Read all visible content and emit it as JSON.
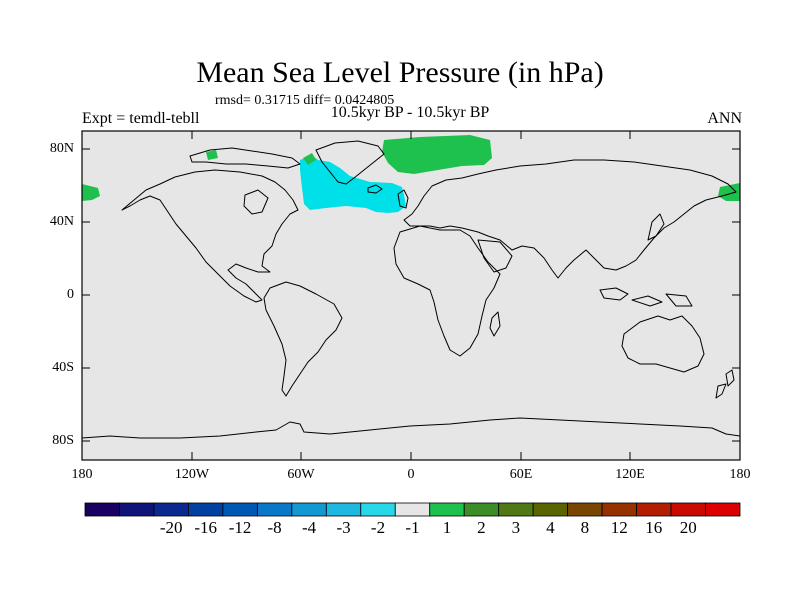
{
  "title": "Mean Sea Level Pressure (in hPa)",
  "stats": "rmsd= 0.31715 diff= 0.0424805",
  "subtitle": "10.5kyr BP - 10.5kyr BP",
  "left_label": "Expt = temdl-tebll",
  "right_label": "ANN",
  "lat_ticks": [
    "80N",
    "40N",
    "0",
    "40S",
    "80S"
  ],
  "lon_ticks": [
    "180",
    "120W",
    "60W",
    "0",
    "60E",
    "120E",
    "180"
  ],
  "colorbar": {
    "colors": [
      "#1a0060",
      "#0e1478",
      "#0a2890",
      "#0040a0",
      "#0058b4",
      "#0a78c8",
      "#1498d2",
      "#1eb8e0",
      "#28d8e8",
      "#e6e6e6",
      "#1ec04e",
      "#3c8c28",
      "#507814",
      "#5a6400",
      "#784600",
      "#963200",
      "#b41e00",
      "#c80a00",
      "#dc0000"
    ],
    "labels": [
      "-20",
      "-16",
      "-12",
      "-8",
      "-4",
      "-3",
      "-2",
      "-1",
      "1",
      "2",
      "3",
      "4",
      "8",
      "12",
      "16",
      "20"
    ]
  },
  "map_fields": {
    "background_color": "#e6e6e6",
    "anomaly_regions": [
      {
        "name": "north-atlantic-negative",
        "color": "#00e0e8",
        "range": "-2 to -1"
      },
      {
        "name": "arctic-positive",
        "color": "#1ec04e",
        "range": "1 to 2"
      }
    ]
  }
}
